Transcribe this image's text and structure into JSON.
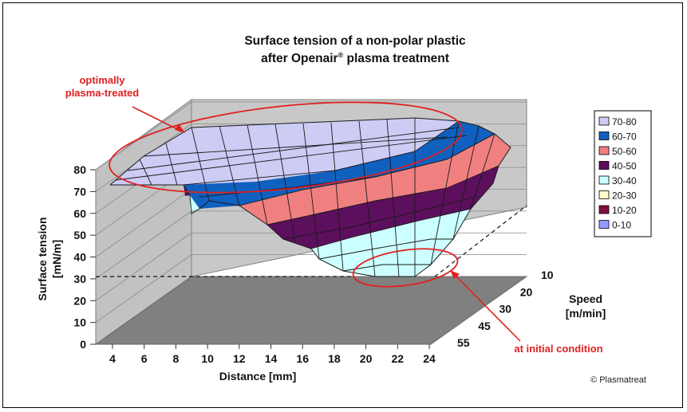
{
  "chart_data": {
    "type": "surface",
    "title_line1": "Surface tension of a non-polar plastic",
    "title_line2_pre": "after Openair",
    "title_line2_sup": "®",
    "title_line2_post": " plasma treatment",
    "zlabel_line1": "Surface tension",
    "zlabel_line2": "[mN/m]",
    "xlabel": "Distance [mm]",
    "ylabel_line1": "Speed",
    "ylabel_line2": "[m/min]",
    "zlim": [
      0,
      80
    ],
    "z_ticks": [
      "0",
      "10",
      "20",
      "30",
      "40",
      "50",
      "60",
      "70",
      "80"
    ],
    "x_ticks": [
      "4",
      "6",
      "8",
      "10",
      "12",
      "14",
      "16",
      "18",
      "20",
      "22",
      "24"
    ],
    "y_ticks": [
      "10",
      "20",
      "30",
      "45",
      "55"
    ],
    "legend": [
      {
        "label": "70-80",
        "color": "#ccccf5"
      },
      {
        "label": "60-70",
        "color": "#1060c0"
      },
      {
        "label": "50-60",
        "color": "#f08080"
      },
      {
        "label": "40-50",
        "color": "#5c0f5c"
      },
      {
        "label": "30-40",
        "color": "#ccffff"
      },
      {
        "label": "20-30",
        "color": "#ffffcc"
      },
      {
        "label": "10-20",
        "color": "#801040"
      },
      {
        "label": "0-10",
        "color": "#9999ff"
      }
    ],
    "reference_line_value": 30
  },
  "annotations": {
    "top_line1": "optimally",
    "top_line2": "plasma-treated",
    "bottom": "at initial condition"
  },
  "copyright": "© Plasmatreat"
}
